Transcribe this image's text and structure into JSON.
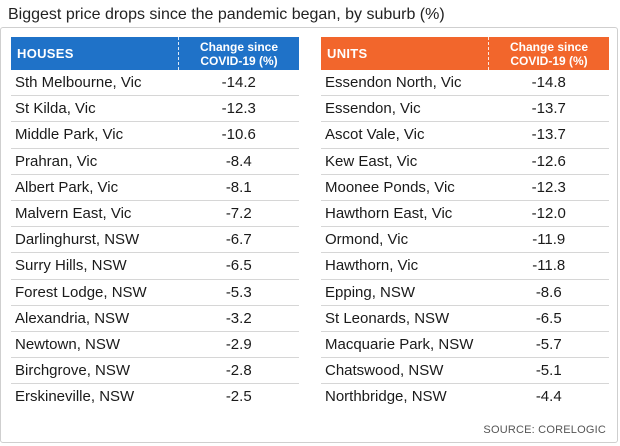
{
  "title": "Biggest price drops since the pandemic began, by suburb (%)",
  "source": "SOURCE: CORELOGIC",
  "colors": {
    "houses_header": "#1f72c8",
    "units_header": "#f2662c"
  },
  "chart_data": {
    "type": "table",
    "title": "Biggest price drops since the pandemic began, by suburb (%)",
    "tables": [
      {
        "name": "HOUSES",
        "columns": [
          "HOUSES",
          "Change since COVID-19 (%)"
        ],
        "rows": [
          {
            "suburb": "Sth Melbourne, Vic",
            "value": "-14.2"
          },
          {
            "suburb": "St Kilda, Vic",
            "value": "-12.3"
          },
          {
            "suburb": "Middle Park, Vic",
            "value": "-10.6"
          },
          {
            "suburb": "Prahran, Vic",
            "value": "-8.4"
          },
          {
            "suburb": "Albert Park, Vic",
            "value": "-8.1"
          },
          {
            "suburb": "Malvern East, Vic",
            "value": "-7.2"
          },
          {
            "suburb": "Darlinghurst, NSW",
            "value": "-6.7"
          },
          {
            "suburb": "Surry Hills, NSW",
            "value": "-6.5"
          },
          {
            "suburb": "Forest Lodge, NSW",
            "value": "-5.3"
          },
          {
            "suburb": "Alexandria, NSW",
            "value": "-3.2"
          },
          {
            "suburb": "Newtown, NSW",
            "value": "-2.9"
          },
          {
            "suburb": "Birchgrove, NSW",
            "value": "-2.8"
          },
          {
            "suburb": "Erskineville, NSW",
            "value": "-2.5"
          }
        ]
      },
      {
        "name": "UNITS",
        "columns": [
          "UNITS",
          "Change since COVID-19 (%)"
        ],
        "rows": [
          {
            "suburb": "Essendon North, Vic",
            "value": "-14.8"
          },
          {
            "suburb": "Essendon, Vic",
            "value": "-13.7"
          },
          {
            "suburb": "Ascot Vale, Vic",
            "value": "-13.7"
          },
          {
            "suburb": "Kew East, Vic",
            "value": "-12.6"
          },
          {
            "suburb": "Moonee Ponds, Vic",
            "value": "-12.3"
          },
          {
            "suburb": "Hawthorn East, Vic",
            "value": "-12.0"
          },
          {
            "suburb": "Ormond, Vic",
            "value": "-11.9"
          },
          {
            "suburb": "Hawthorn, Vic",
            "value": "-11.8"
          },
          {
            "suburb": "Epping, NSW",
            "value": "-8.6"
          },
          {
            "suburb": "St Leonards, NSW",
            "value": "-6.5"
          },
          {
            "suburb": "Macquarie Park, NSW",
            "value": "-5.7"
          },
          {
            "suburb": "Chatswood, NSW",
            "value": "-5.1"
          },
          {
            "suburb": "Northbridge, NSW",
            "value": "-4.4"
          }
        ]
      }
    ]
  }
}
